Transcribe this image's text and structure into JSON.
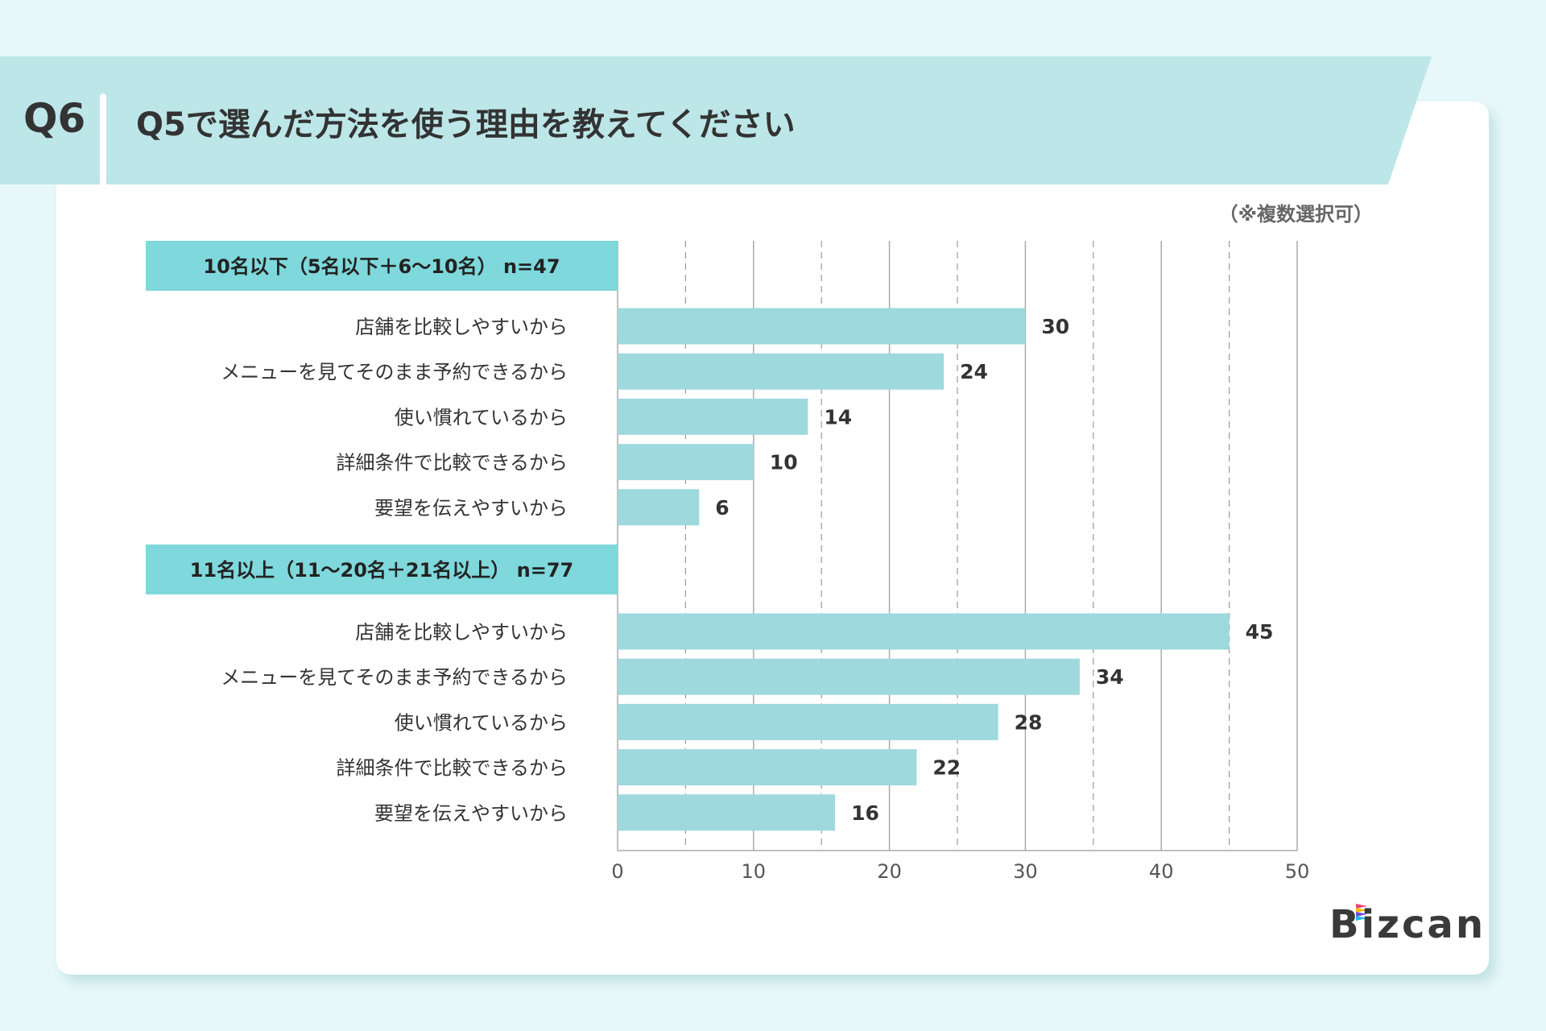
{
  "header": {
    "question_no": "Q6",
    "title": "Q5で選んだ方法を使う理由を教えてください",
    "note": "（※複数選択可）"
  },
  "logo": "Bizcan",
  "colors": {
    "bar": "#9ed9de",
    "group_header": "#7fd8db",
    "band": "#bde6e8",
    "background": "#e8f8f9"
  },
  "chart_data": {
    "type": "bar",
    "orientation": "horizontal",
    "xlim": [
      0,
      50
    ],
    "xticks": [
      0,
      10,
      20,
      30,
      40,
      50
    ],
    "grid": true,
    "groups": [
      {
        "header": "10名以下（5名以下＋6〜10名） n=47",
        "categories": [
          "店舗を比較しやすいから",
          "メニューを見てそのまま予約できるから",
          "使い慣れているから",
          "詳細条件で比較できるから",
          "要望を伝えやすいから"
        ],
        "values": [
          30,
          24,
          14,
          10,
          6
        ]
      },
      {
        "header": "11名以上（11〜20名＋21名以上） n=77",
        "categories": [
          "店舗を比較しやすいから",
          "メニューを見てそのまま予約できるから",
          "使い慣れているから",
          "詳細条件で比較できるから",
          "要望を伝えやすいから"
        ],
        "values": [
          45,
          34,
          28,
          22,
          16
        ]
      }
    ]
  }
}
